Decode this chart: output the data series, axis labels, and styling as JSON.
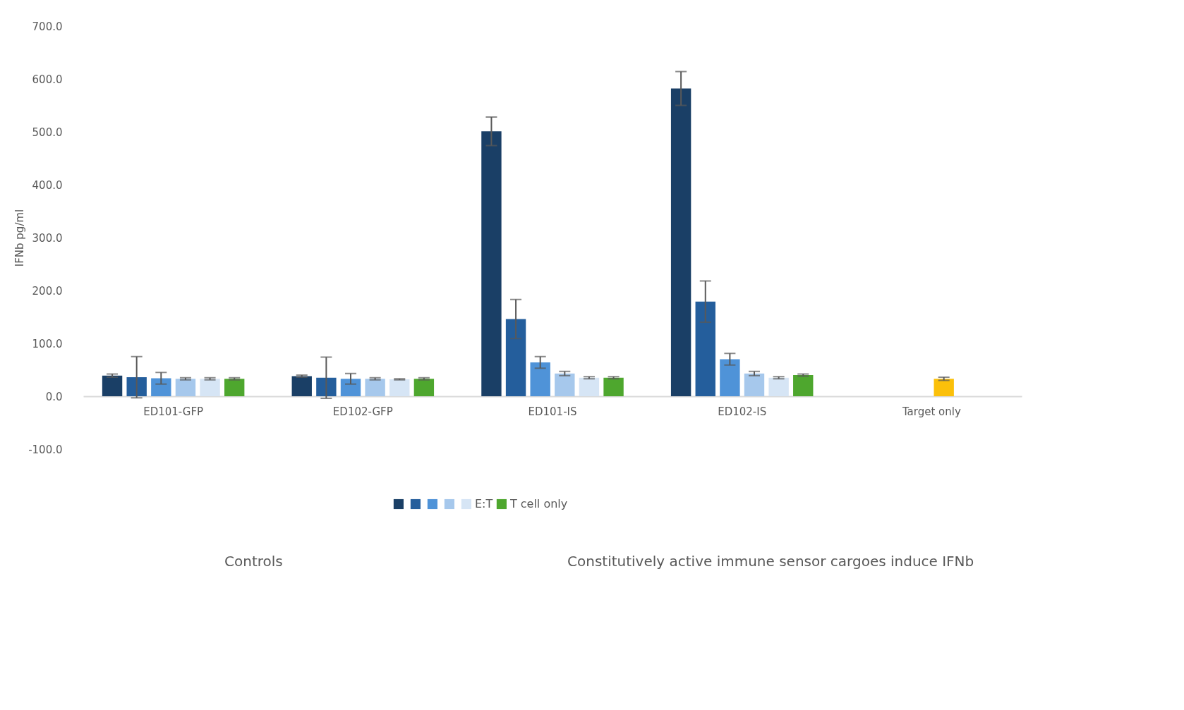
{
  "chart_data": {
    "type": "bar",
    "ylabel": "IFNb pg/ml",
    "categories": [
      "ED101-GFP",
      "ED102-GFP",
      "ED101-IS",
      "ED102-IS",
      "Target only"
    ],
    "series": [
      {
        "color": "#1a3f66",
        "values": [
          39,
          38,
          501,
          582,
          null
        ],
        "errors": [
          3,
          2,
          27,
          32,
          null
        ]
      },
      {
        "color": "#245e9c",
        "values": [
          36,
          35,
          146,
          179,
          null
        ],
        "errors": [
          39,
          39,
          37,
          39,
          null
        ]
      },
      {
        "color": "#4f93d8",
        "values": [
          34,
          33,
          64,
          70,
          null
        ],
        "errors": [
          11,
          10,
          11,
          11,
          null
        ]
      },
      {
        "color": "#a6c8ec",
        "values": [
          33,
          33,
          43,
          43,
          33
        ],
        "errors": [
          2,
          2,
          4,
          4,
          3
        ],
        "colors": [
          "#a6c8ec",
          "#a6c8ec",
          "#a6c8ec",
          "#a6c8ec",
          "#fbc00a"
        ]
      },
      {
        "name": "E:T",
        "color": "#d6e5f5",
        "values": [
          33,
          32,
          35,
          35,
          null
        ],
        "errors": [
          2,
          1,
          2,
          2,
          null
        ]
      },
      {
        "name": "T cell only",
        "color": "#4ea72e",
        "values": [
          33,
          33,
          35,
          40,
          null
        ],
        "errors": [
          2,
          2,
          2,
          2,
          null
        ]
      }
    ],
    "ylim": [
      -100,
      700
    ],
    "yticks": [
      {
        "value": -100,
        "label": "-100.0"
      },
      {
        "value": 0,
        "label": "0.0"
      },
      {
        "value": 100,
        "label": "100.0"
      },
      {
        "value": 200,
        "label": "200.0"
      },
      {
        "value": 300,
        "label": "300.0"
      },
      {
        "value": 400,
        "label": "400.0"
      },
      {
        "value": 500,
        "label": "500.0"
      },
      {
        "value": 600,
        "label": "600.0"
      },
      {
        "value": 700,
        "label": "700.0"
      }
    ],
    "grid": false,
    "legend": "bottom",
    "annotations": [
      "Controls",
      "Constitutively active immune sensor cargoes induce IFNb"
    ]
  }
}
